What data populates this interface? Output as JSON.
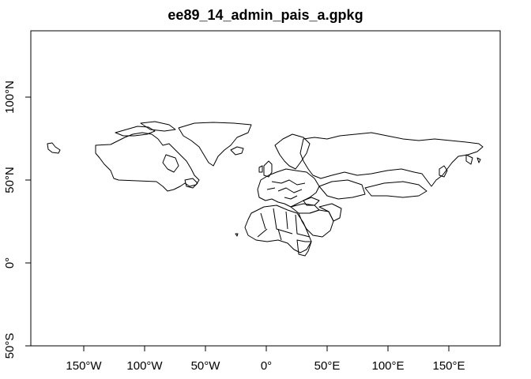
{
  "title": "ee89_14_admin_pais_a.gpkg",
  "x_axis": {
    "ticks": [
      -150,
      -100,
      -50,
      0,
      50,
      100,
      150
    ],
    "labels": [
      "150°W",
      "100°W",
      "50°W",
      "0°",
      "50°E",
      "100°E",
      "150°E"
    ]
  },
  "y_axis": {
    "ticks": [
      -50,
      0,
      50,
      100
    ],
    "labels": [
      "50°S",
      "0°",
      "50°N",
      "100°N"
    ]
  },
  "extent": {
    "xlim": [
      -180,
      180
    ],
    "ylim": [
      -50,
      100
    ]
  },
  "colors": {
    "outline": "#000000",
    "background": "#ffffff"
  }
}
